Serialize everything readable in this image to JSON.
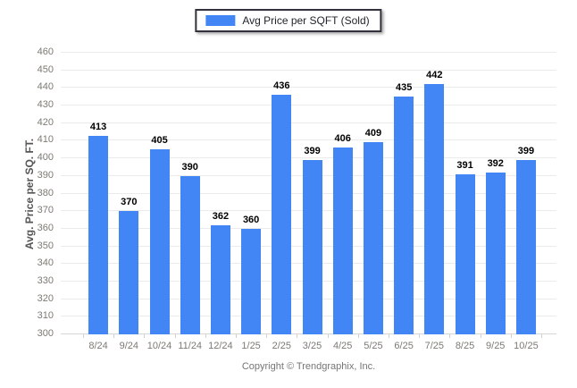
{
  "chart_data": {
    "type": "bar",
    "legend": "Avg Price per SQFT (Sold)",
    "ylabel": "Avg. Price per SQ. FT.",
    "categories": [
      "8/24",
      "9/24",
      "10/24",
      "11/24",
      "12/24",
      "1/25",
      "2/25",
      "3/25",
      "4/25",
      "5/25",
      "6/25",
      "7/25",
      "8/25",
      "9/25",
      "10/25"
    ],
    "values": [
      413,
      370,
      405,
      390,
      362,
      360,
      436,
      399,
      406,
      409,
      435,
      442,
      391,
      392,
      399
    ],
    "ylim": [
      300,
      460
    ],
    "ytick_step": 10,
    "bar_color": "#4285F4",
    "grid": true,
    "legend_position": "top-center"
  },
  "footer": {
    "copyright": "Copyright © Trendgraphix, Inc."
  }
}
